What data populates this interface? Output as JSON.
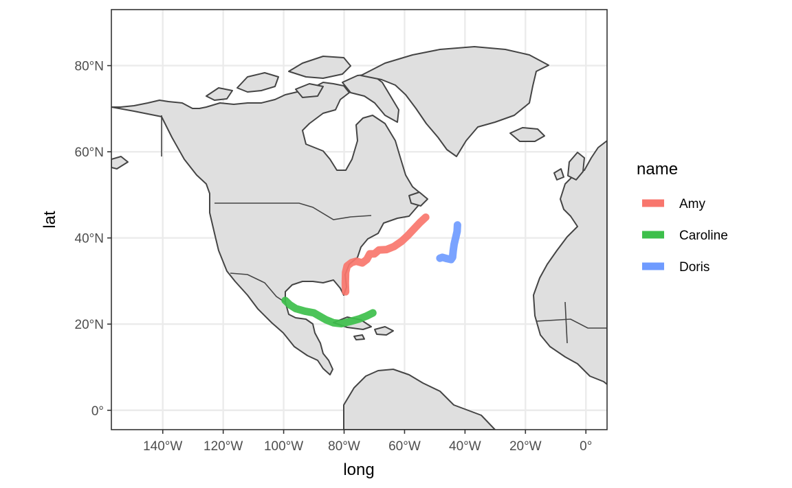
{
  "chart_data": {
    "type": "map",
    "xlabel": "long",
    "ylabel": "lat",
    "xlim": [
      -157,
      7
    ],
    "ylim": [
      -4.5,
      93
    ],
    "grid": true,
    "legend": {
      "title": "name",
      "placement": "right",
      "entries": [
        {
          "label": "Amy",
          "color": "#f8766d"
        },
        {
          "label": "Caroline",
          "color": "#3dbf4b"
        },
        {
          "label": "Doris",
          "color": "#6f9bff"
        }
      ]
    },
    "x_ticks": [
      {
        "value": -140,
        "label": "140°W"
      },
      {
        "value": -120,
        "label": "120°W"
      },
      {
        "value": -100,
        "label": "100°W"
      },
      {
        "value": -80,
        "label": "80°W"
      },
      {
        "value": -60,
        "label": "60°W"
      },
      {
        "value": -40,
        "label": "40°W"
      },
      {
        "value": -20,
        "label": "20°W"
      },
      {
        "value": 0,
        "label": "0°"
      }
    ],
    "y_ticks": [
      {
        "value": 0,
        "label": "0°"
      },
      {
        "value": 20,
        "label": "20°N"
      },
      {
        "value": 40,
        "label": "40°N"
      },
      {
        "value": 60,
        "label": "60°N"
      },
      {
        "value": 80,
        "label": "80°N"
      }
    ],
    "series": [
      {
        "name": "Amy",
        "color": "#f8766d",
        "points": [
          [
            -79.5,
            27.5
          ],
          [
            -79.6,
            29.5
          ],
          [
            -79.5,
            32
          ],
          [
            -79,
            33.5
          ],
          [
            -77.5,
            34.3
          ],
          [
            -76,
            34.6
          ],
          [
            -74,
            34.2
          ],
          [
            -72.5,
            35
          ],
          [
            -71.5,
            36.3
          ],
          [
            -70,
            36.3
          ],
          [
            -68.5,
            37.2
          ],
          [
            -66,
            37.3
          ],
          [
            -63.5,
            38
          ],
          [
            -61,
            39.2
          ],
          [
            -59,
            40.5
          ],
          [
            -57,
            42
          ],
          [
            -55,
            43.5
          ],
          [
            -53,
            44.8
          ]
        ]
      },
      {
        "name": "Caroline",
        "color": "#3dbf4b",
        "points": [
          [
            -99.5,
            25.5
          ],
          [
            -98,
            24.5
          ],
          [
            -96,
            23.6
          ],
          [
            -93,
            23
          ],
          [
            -90,
            22.6
          ],
          [
            -88,
            21.8
          ],
          [
            -86,
            21
          ],
          [
            -83.5,
            20.3
          ],
          [
            -81,
            20.1
          ],
          [
            -78,
            20.6
          ],
          [
            -75,
            21.2
          ],
          [
            -72.5,
            21.9
          ],
          [
            -70.5,
            22.6
          ]
        ]
      },
      {
        "name": "Doris",
        "color": "#6f9bff",
        "points": [
          [
            -42.5,
            43
          ],
          [
            -42.6,
            41.5
          ],
          [
            -43.1,
            40
          ],
          [
            -43.6,
            38.5
          ],
          [
            -43.9,
            37
          ],
          [
            -44.1,
            35.5
          ],
          [
            -44.6,
            35
          ],
          [
            -46,
            35.2
          ],
          [
            -47.5,
            35.5
          ],
          [
            -48.3,
            35.3
          ]
        ]
      }
    ]
  }
}
